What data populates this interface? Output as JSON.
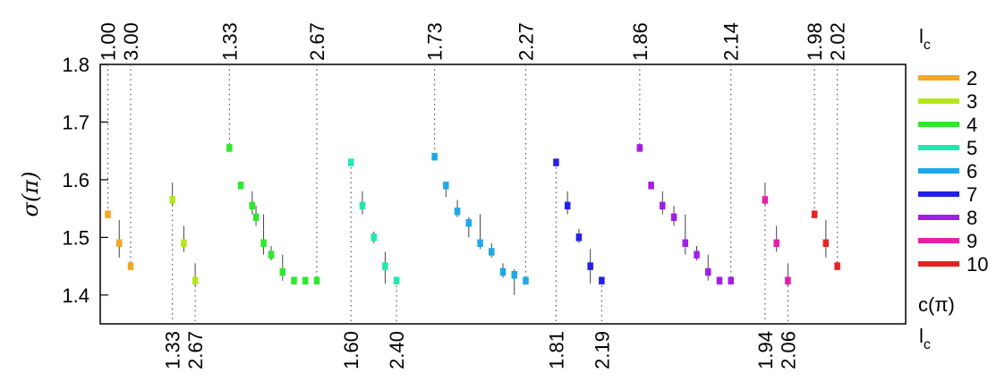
{
  "chart_data": {
    "type": "scatter",
    "title": "",
    "ylabel": "σ(π)",
    "xlabel": "",
    "xlim": [
      0.6,
      11.2
    ],
    "ylim": [
      1.35,
      1.8
    ],
    "yticks": [
      1.4,
      1.5,
      1.6,
      1.7,
      1.8
    ],
    "ytick_labels": [
      "1.4",
      "1.5",
      "1.6",
      "1.7",
      "1.8"
    ],
    "grid": false,
    "legend_title": "l_c",
    "legend_footer": "c(π)",
    "legend_position": "right",
    "top_axis_label": "l_c",
    "bottom_axis_label": "l_c",
    "series": [
      {
        "name": "2",
        "color": "#F5A623",
        "x": [
          0.7,
          0.85,
          1.0
        ],
        "y": [
          1.54,
          1.49,
          1.45
        ],
        "ylow": [
          1.535,
          1.465,
          1.445
        ],
        "yhigh": [
          1.545,
          1.53,
          1.455
        ]
      },
      {
        "name": "3",
        "color": "#B5E61D",
        "x": [
          1.55,
          1.7,
          1.85
        ],
        "y": [
          1.565,
          1.49,
          1.425
        ],
        "ylow": [
          1.555,
          1.475,
          1.415
        ],
        "yhigh": [
          1.595,
          1.52,
          1.455
        ]
      },
      {
        "name": "4",
        "color": "#2EE82E",
        "x": [
          2.3,
          2.45,
          2.6,
          2.65,
          2.75,
          2.85,
          3.0,
          3.15,
          3.3,
          3.45
        ],
        "y": [
          1.655,
          1.59,
          1.555,
          1.535,
          1.49,
          1.47,
          1.44,
          1.425,
          1.425,
          1.425
        ],
        "ylow": [
          1.65,
          1.585,
          1.54,
          1.52,
          1.47,
          1.46,
          1.425,
          1.42,
          1.42,
          1.42
        ],
        "yhigh": [
          1.66,
          1.595,
          1.58,
          1.555,
          1.54,
          1.485,
          1.47,
          1.43,
          1.43,
          1.43
        ]
      },
      {
        "name": "5",
        "color": "#1FE8B0",
        "x": [
          3.9,
          4.05,
          4.2,
          4.35,
          4.5
        ],
        "y": [
          1.63,
          1.555,
          1.5,
          1.45,
          1.425
        ],
        "ylow": [
          1.625,
          1.54,
          1.49,
          1.42,
          1.42
        ],
        "yhigh": [
          1.635,
          1.58,
          1.51,
          1.475,
          1.43
        ]
      },
      {
        "name": "6",
        "color": "#1EA8E8",
        "x": [
          5.0,
          5.15,
          5.3,
          5.45,
          5.6,
          5.75,
          5.9,
          6.05,
          6.2
        ],
        "y": [
          1.64,
          1.59,
          1.545,
          1.525,
          1.49,
          1.475,
          1.44,
          1.435,
          1.425
        ],
        "ylow": [
          1.635,
          1.57,
          1.535,
          1.5,
          1.48,
          1.465,
          1.43,
          1.4,
          1.42
        ],
        "yhigh": [
          1.645,
          1.595,
          1.565,
          1.535,
          1.54,
          1.49,
          1.455,
          1.445,
          1.43
        ]
      },
      {
        "name": "7",
        "color": "#2121E8",
        "x": [
          6.6,
          6.75,
          6.9,
          7.05,
          7.2
        ],
        "y": [
          1.63,
          1.555,
          1.5,
          1.45,
          1.425
        ],
        "ylow": [
          1.625,
          1.54,
          1.49,
          1.42,
          1.42
        ],
        "yhigh": [
          1.635,
          1.58,
          1.515,
          1.48,
          1.43
        ]
      },
      {
        "name": "8",
        "color": "#A21EE8",
        "x": [
          7.7,
          7.85,
          8.0,
          8.15,
          8.3,
          8.45,
          8.6,
          8.75,
          8.9
        ],
        "y": [
          1.655,
          1.59,
          1.555,
          1.535,
          1.49,
          1.47,
          1.44,
          1.425,
          1.425
        ],
        "ylow": [
          1.65,
          1.585,
          1.54,
          1.52,
          1.47,
          1.46,
          1.425,
          1.42,
          1.42
        ],
        "yhigh": [
          1.66,
          1.595,
          1.58,
          1.555,
          1.54,
          1.485,
          1.47,
          1.43,
          1.43
        ]
      },
      {
        "name": "9",
        "color": "#E81EA8",
        "x": [
          9.35,
          9.5,
          9.65
        ],
        "y": [
          1.565,
          1.49,
          1.425
        ],
        "ylow": [
          1.555,
          1.475,
          1.415
        ],
        "yhigh": [
          1.595,
          1.52,
          1.455
        ]
      },
      {
        "name": "10",
        "color": "#E82121",
        "x": [
          10.0,
          10.15,
          10.3
        ],
        "y": [
          1.54,
          1.49,
          1.45
        ],
        "ylow": [
          1.535,
          1.465,
          1.445
        ],
        "yhigh": [
          1.545,
          1.53,
          1.455
        ]
      }
    ],
    "top_marks": [
      {
        "x": 0.7,
        "label": "1.00"
      },
      {
        "x": 1.0,
        "label": "3.00"
      },
      {
        "x": 2.3,
        "label": "1.33"
      },
      {
        "x": 3.45,
        "label": "2.67"
      },
      {
        "x": 5.0,
        "label": "1.73"
      },
      {
        "x": 6.2,
        "label": "2.27"
      },
      {
        "x": 7.7,
        "label": "1.86"
      },
      {
        "x": 8.9,
        "label": "2.14"
      },
      {
        "x": 10.0,
        "label": "1.98"
      },
      {
        "x": 10.3,
        "label": "2.02"
      }
    ],
    "bottom_marks": [
      {
        "x": 1.55,
        "label": "1.33"
      },
      {
        "x": 1.85,
        "label": "2.67"
      },
      {
        "x": 3.9,
        "label": "1.60"
      },
      {
        "x": 4.5,
        "label": "2.40"
      },
      {
        "x": 6.6,
        "label": "1.81"
      },
      {
        "x": 7.2,
        "label": "2.19"
      },
      {
        "x": 9.35,
        "label": "1.94"
      },
      {
        "x": 9.65,
        "label": "2.06"
      }
    ]
  }
}
